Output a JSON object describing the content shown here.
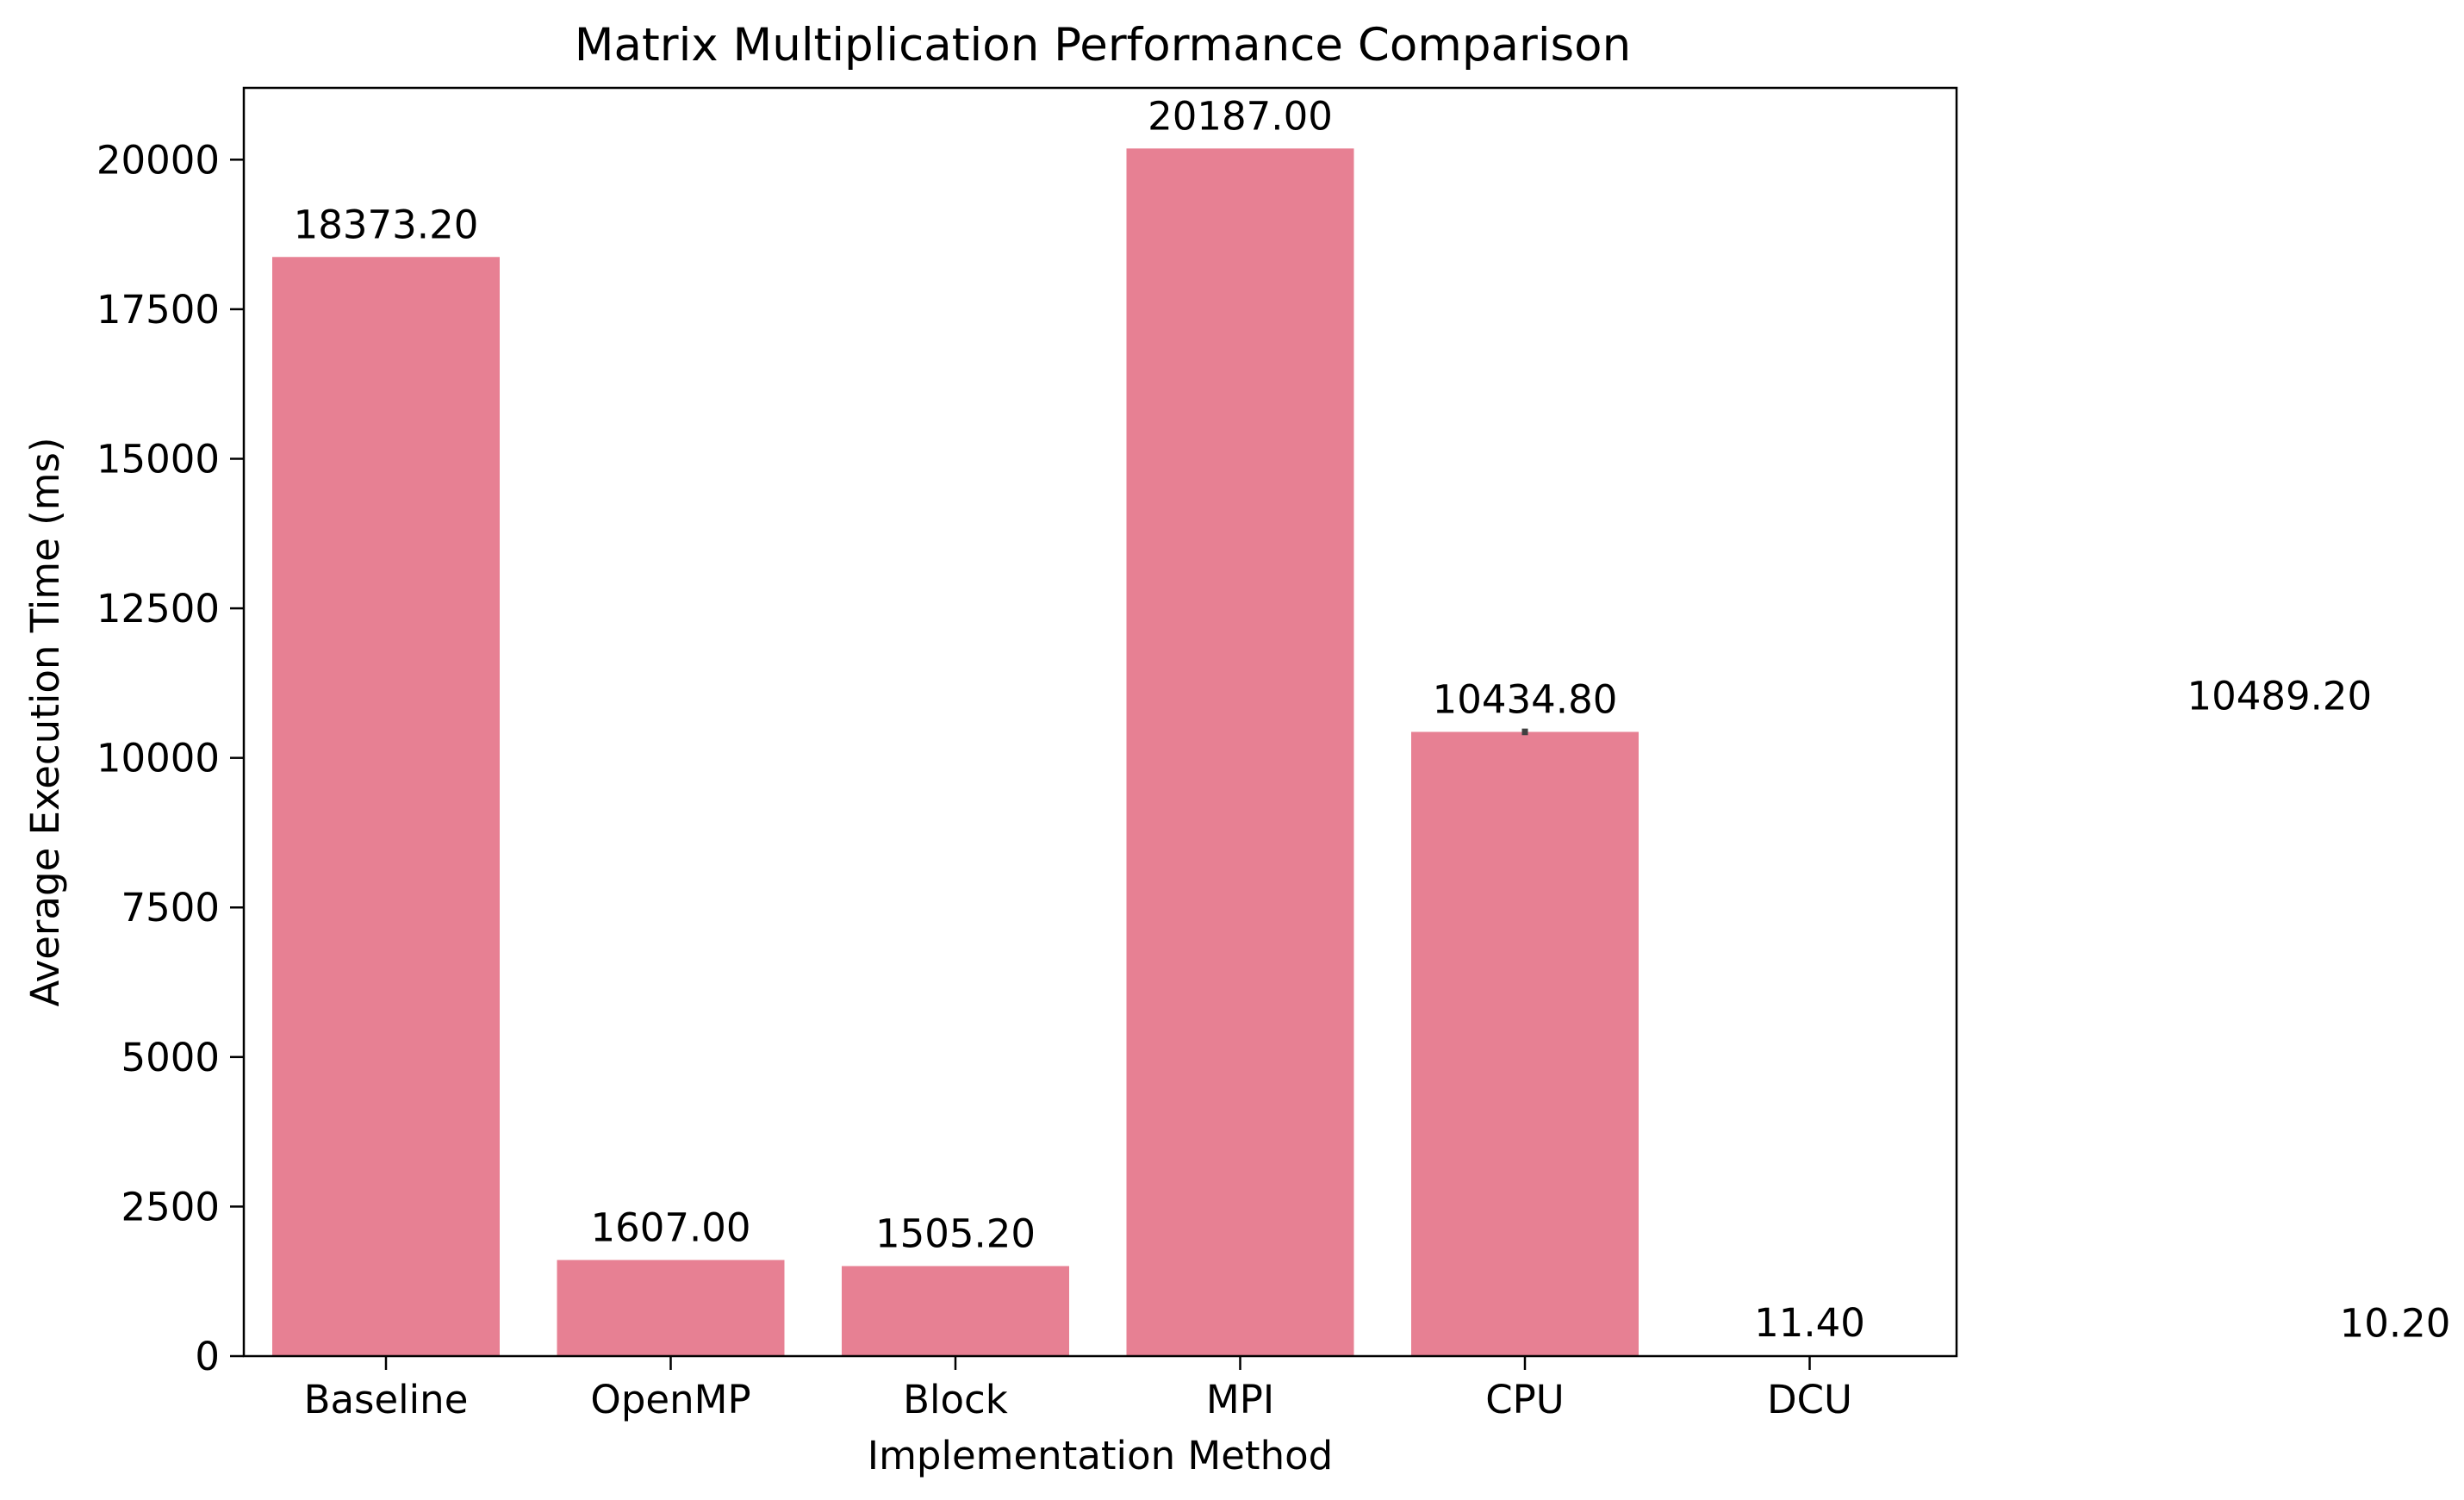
{
  "chart_data": {
    "type": "bar",
    "title": "Matrix Multiplication Performance Comparison",
    "xlabel": "Implementation Method",
    "ylabel": "Average Execution Time (ms)",
    "categories": [
      "Baseline",
      "OpenMP",
      "Block",
      "MPI",
      "CPU",
      "DCU"
    ],
    "values": [
      18373.2,
      1607.0,
      1505.2,
      20187.0,
      10434.8,
      11.4
    ],
    "value_labels": [
      "18373.20",
      "1607.00",
      "1505.20",
      "20187.00",
      "10434.80",
      "11.40"
    ],
    "ylim": [
      0,
      21200
    ],
    "yticks": [
      0,
      2500,
      5000,
      7500,
      10000,
      12500,
      15000,
      17500,
      20000
    ],
    "ytick_labels": [
      "0",
      "2500",
      "5000",
      "7500",
      "10000",
      "12500",
      "15000",
      "17500",
      "20000"
    ],
    "error_bars": [
      {
        "category": "CPU",
        "low": 10380,
        "high": 10490
      }
    ],
    "extra_annotations": [
      {
        "text": "10489.20",
        "value": 10489.2
      },
      {
        "text": "10.20",
        "value": 10.2
      }
    ],
    "grid": false,
    "bar_color": "#e78093",
    "error_bar_color": "#404040"
  }
}
